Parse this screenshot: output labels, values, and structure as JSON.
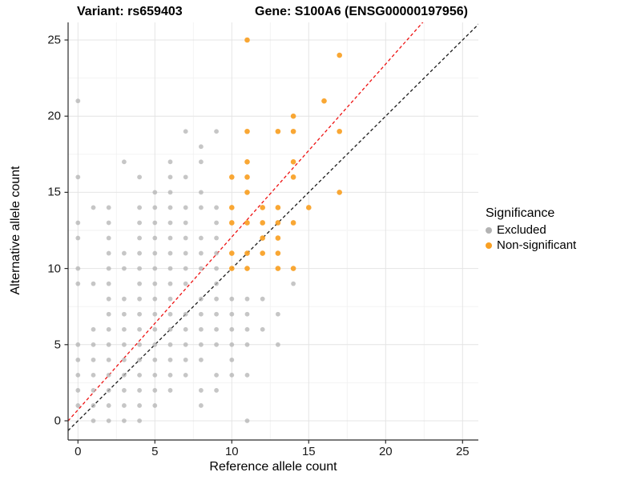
{
  "titles": {
    "left": "Variant: rs659403",
    "right": "Gene: S100A6 (ENSG00000197956)"
  },
  "legend": {
    "title": "Significance",
    "items": [
      {
        "label": "Excluded",
        "color": "#b3b3b3"
      },
      {
        "label": "Non-significant",
        "color": "#f9a023"
      }
    ]
  },
  "chart_data": {
    "type": "scatter",
    "title": "Variant: rs659403 / Gene: S100A6 (ENSG00000197956)",
    "xlabel": "Reference allele count",
    "ylabel": "Alternative allele count",
    "xlim": [
      -0.65,
      26.05
    ],
    "ylim": [
      -1.3,
      26.2
    ],
    "x_ticks": [
      0,
      5,
      10,
      15,
      20,
      25
    ],
    "y_ticks": [
      0,
      5,
      10,
      15,
      20,
      25
    ],
    "x_minor": [
      2.5,
      7.5,
      12.5,
      17.5,
      22.5
    ],
    "y_minor": [
      2.5,
      7.5,
      12.5,
      17.5,
      22.5
    ],
    "grid": true,
    "legend_position": "right",
    "series": [
      {
        "name": "Excluded",
        "color": "#b3b3b3",
        "opacity": 0.75,
        "radius": 2.9,
        "points": [
          [
            0,
            1
          ],
          [
            0,
            2
          ],
          [
            0,
            3
          ],
          [
            0,
            4
          ],
          [
            0,
            5
          ],
          [
            0,
            9
          ],
          [
            0,
            10
          ],
          [
            0,
            12
          ],
          [
            0,
            13
          ],
          [
            0,
            16
          ],
          [
            0,
            21
          ],
          [
            1,
            0
          ],
          [
            1,
            1
          ],
          [
            1,
            2
          ],
          [
            1,
            3
          ],
          [
            1,
            4
          ],
          [
            1,
            5
          ],
          [
            1,
            6
          ],
          [
            1,
            9
          ],
          [
            1,
            14
          ],
          [
            2,
            0
          ],
          [
            2,
            1
          ],
          [
            2,
            2
          ],
          [
            2,
            3
          ],
          [
            2,
            4
          ],
          [
            2,
            5
          ],
          [
            2,
            6
          ],
          [
            2,
            7
          ],
          [
            2,
            8
          ],
          [
            2,
            9
          ],
          [
            2,
            10
          ],
          [
            2,
            11
          ],
          [
            2,
            12
          ],
          [
            2,
            13
          ],
          [
            2,
            14
          ],
          [
            3,
            0
          ],
          [
            3,
            1
          ],
          [
            3,
            2
          ],
          [
            3,
            3
          ],
          [
            3,
            4
          ],
          [
            3,
            5
          ],
          [
            3,
            6
          ],
          [
            3,
            7
          ],
          [
            3,
            8
          ],
          [
            3,
            10
          ],
          [
            3,
            11
          ],
          [
            3,
            17
          ],
          [
            4,
            0
          ],
          [
            4,
            1
          ],
          [
            4,
            2
          ],
          [
            4,
            3
          ],
          [
            4,
            4
          ],
          [
            4,
            5
          ],
          [
            4,
            6
          ],
          [
            4,
            7
          ],
          [
            4,
            8
          ],
          [
            4,
            9
          ],
          [
            4,
            10
          ],
          [
            4,
            11
          ],
          [
            4,
            12
          ],
          [
            4,
            13
          ],
          [
            4,
            14
          ],
          [
            4,
            16
          ],
          [
            5,
            1
          ],
          [
            5,
            2
          ],
          [
            5,
            3
          ],
          [
            5,
            4
          ],
          [
            5,
            5
          ],
          [
            5,
            6
          ],
          [
            5,
            7
          ],
          [
            5,
            8
          ],
          [
            5,
            9
          ],
          [
            5,
            10
          ],
          [
            5,
            11
          ],
          [
            5,
            12
          ],
          [
            5,
            13
          ],
          [
            5,
            14
          ],
          [
            5,
            15
          ],
          [
            6,
            2
          ],
          [
            6,
            3
          ],
          [
            6,
            4
          ],
          [
            6,
            5
          ],
          [
            6,
            6
          ],
          [
            6,
            7
          ],
          [
            6,
            8
          ],
          [
            6,
            9
          ],
          [
            6,
            10
          ],
          [
            6,
            11
          ],
          [
            6,
            12
          ],
          [
            6,
            13
          ],
          [
            6,
            14
          ],
          [
            6,
            15
          ],
          [
            6,
            16
          ],
          [
            6,
            17
          ],
          [
            7,
            3
          ],
          [
            7,
            4
          ],
          [
            7,
            5
          ],
          [
            7,
            6
          ],
          [
            7,
            7
          ],
          [
            7,
            9
          ],
          [
            7,
            10
          ],
          [
            7,
            11
          ],
          [
            7,
            12
          ],
          [
            7,
            13
          ],
          [
            7,
            14
          ],
          [
            7,
            16
          ],
          [
            7,
            19
          ],
          [
            8,
            1
          ],
          [
            8,
            2
          ],
          [
            8,
            4
          ],
          [
            8,
            5
          ],
          [
            8,
            6
          ],
          [
            8,
            7
          ],
          [
            8,
            8
          ],
          [
            8,
            10
          ],
          [
            8,
            11
          ],
          [
            8,
            12
          ],
          [
            8,
            14
          ],
          [
            8,
            15
          ],
          [
            8,
            17
          ],
          [
            8,
            18
          ],
          [
            9,
            2
          ],
          [
            9,
            3
          ],
          [
            9,
            5
          ],
          [
            9,
            6
          ],
          [
            9,
            7
          ],
          [
            9,
            8
          ],
          [
            9,
            9
          ],
          [
            9,
            10
          ],
          [
            9,
            11
          ],
          [
            9,
            12
          ],
          [
            9,
            13
          ],
          [
            9,
            14
          ],
          [
            9,
            19
          ],
          [
            10,
            3
          ],
          [
            10,
            4
          ],
          [
            10,
            5
          ],
          [
            10,
            6
          ],
          [
            10,
            7
          ],
          [
            10,
            8
          ],
          [
            11,
            0
          ],
          [
            11,
            3
          ],
          [
            11,
            5
          ],
          [
            11,
            6
          ],
          [
            11,
            7
          ],
          [
            11,
            8
          ],
          [
            12,
            6
          ],
          [
            12,
            8
          ],
          [
            13,
            5
          ],
          [
            13,
            7
          ],
          [
            14,
            9
          ]
        ]
      },
      {
        "name": "Non-significant",
        "color": "#f9a023",
        "opacity": 0.92,
        "radius": 3.3,
        "points": [
          [
            10,
            10
          ],
          [
            10,
            11
          ],
          [
            10,
            13
          ],
          [
            10,
            14
          ],
          [
            10,
            16
          ],
          [
            11,
            10
          ],
          [
            11,
            11
          ],
          [
            11,
            13
          ],
          [
            11,
            15
          ],
          [
            11,
            16
          ],
          [
            11,
            17
          ],
          [
            11,
            19
          ],
          [
            11,
            25
          ],
          [
            12,
            11
          ],
          [
            12,
            12
          ],
          [
            12,
            13
          ],
          [
            12,
            14
          ],
          [
            13,
            10
          ],
          [
            13,
            11
          ],
          [
            13,
            12
          ],
          [
            13,
            13
          ],
          [
            13,
            14
          ],
          [
            13,
            19
          ],
          [
            14,
            10
          ],
          [
            14,
            13
          ],
          [
            14,
            16
          ],
          [
            14,
            17
          ],
          [
            14,
            19
          ],
          [
            14,
            20
          ],
          [
            15,
            14
          ],
          [
            16,
            21
          ],
          [
            17,
            15
          ],
          [
            17,
            19
          ],
          [
            17,
            24
          ]
        ]
      }
    ],
    "lines": [
      {
        "name": "identity-line",
        "slope": 1,
        "intercept": 0,
        "color": "#1a1a1a",
        "dash": "4 3"
      },
      {
        "name": "ratio-line",
        "slope": 1.135,
        "intercept": 0.72,
        "color": "#ee1111",
        "dash": "4 3"
      }
    ]
  }
}
